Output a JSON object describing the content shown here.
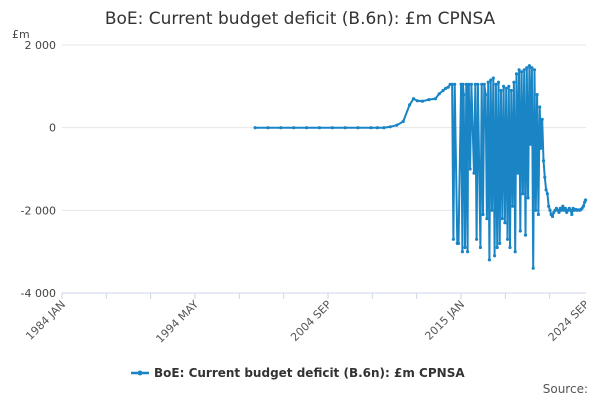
{
  "chart_data": {
    "type": "line",
    "title": "BoE: Current budget deficit (B.6n): £m CPNSA",
    "ylabel": "£m",
    "xlabel": "",
    "ylim": [
      -4000,
      2000
    ],
    "yticks": [
      2000,
      0,
      -2000,
      -4000
    ],
    "ytick_labels": [
      "2 000",
      "0",
      "-2 000",
      "-4 000"
    ],
    "xlim": [
      1984.0,
      2024.7
    ],
    "xticks": [
      1984.0,
      1994.33,
      2004.67,
      2015.0,
      2024.67
    ],
    "xtick_labels": [
      "1984 JAN",
      "1994 MAY",
      "2004 SEP",
      "2015 JAN",
      "2024 SEP"
    ],
    "grid": true,
    "legend": "bottom-center",
    "color": "#1a85c5",
    "series": [
      {
        "name": "BoE: Current budget deficit (B.6n): £m CPNSA",
        "x": [
          1999.0,
          2000.0,
          2001.0,
          2002.0,
          2003.0,
          2004.0,
          2005.0,
          2006.0,
          2007.0,
          2008.0,
          2008.5,
          2009.0,
          2009.5,
          2010.0,
          2010.5,
          2011.0,
          2011.3,
          2011.6,
          2012.0,
          2012.5,
          2013.0,
          2013.3,
          2013.6,
          2013.8,
          2014.0,
          2014.15,
          2014.3,
          2014.4,
          2014.5,
          2014.7,
          2014.8,
          2015.0,
          2015.1,
          2015.15,
          2015.2,
          2015.3,
          2015.4,
          2015.5,
          2015.55,
          2015.6,
          2015.7,
          2015.8,
          2016.0,
          2016.1,
          2016.2,
          2016.3,
          2016.5,
          2016.6,
          2016.7,
          2016.8,
          2016.9,
          2017.0,
          2017.1,
          2017.2,
          2017.3,
          2017.4,
          2017.5,
          2017.6,
          2017.7,
          2017.8,
          2017.9,
          2018.0,
          2018.1,
          2018.2,
          2018.3,
          2018.4,
          2018.5,
          2018.6,
          2018.7,
          2018.8,
          2018.9,
          2019.0,
          2019.1,
          2019.2,
          2019.3,
          2019.4,
          2019.5,
          2019.6,
          2019.7,
          2019.8,
          2019.9,
          2020.0,
          2020.1,
          2020.2,
          2020.3,
          2020.4,
          2020.5,
          2020.6,
          2020.7,
          2020.8,
          2020.9,
          2021.0,
          2021.1,
          2021.2,
          2021.3,
          2021.4,
          2021.5,
          2021.6,
          2021.7,
          2021.8,
          2021.9,
          2022.0,
          2022.1,
          2022.2,
          2022.3,
          2022.4,
          2022.5,
          2022.6,
          2022.7,
          2022.8,
          2022.9,
          2023.0,
          2023.1,
          2023.2,
          2023.3,
          2023.4,
          2023.5,
          2023.6,
          2023.7,
          2023.8,
          2023.9,
          2024.0,
          2024.1,
          2024.2,
          2024.3,
          2024.4,
          2024.5,
          2024.6,
          2024.67
        ],
        "y": [
          0,
          0,
          0,
          0,
          0,
          0,
          0,
          0,
          0,
          0,
          0,
          0,
          20,
          60,
          150,
          550,
          700,
          650,
          640,
          680,
          700,
          820,
          900,
          950,
          980,
          1050,
          1050,
          -2700,
          1050,
          -2800,
          -2800,
          1050,
          -3000,
          1050,
          800,
          -2900,
          1050,
          -3000,
          1000,
          1050,
          -1000,
          1050,
          -1100,
          1050,
          -2700,
          1050,
          -2900,
          1050,
          -2100,
          1050,
          800,
          -2200,
          1100,
          -3200,
          1150,
          -2000,
          1200,
          -3100,
          1050,
          -2900,
          1100,
          -2800,
          900,
          -2200,
          1000,
          -2300,
          950,
          -2700,
          1000,
          -2900,
          900,
          -1900,
          1100,
          -3000,
          1300,
          -1100,
          1400,
          -2500,
          1350,
          -1600,
          1400,
          -2600,
          1450,
          -1700,
          1500,
          -400,
          1450,
          -3400,
          1400,
          -2000,
          800,
          -2100,
          500,
          -500,
          200,
          -800,
          -1200,
          -1500,
          -1600,
          -1900,
          -2000,
          -2100,
          -2150,
          -2050,
          -2000,
          -1950,
          -2000,
          -2050,
          -1950,
          -2000,
          -1900,
          -2000,
          -1950,
          -2050,
          -2000,
          -1950,
          -2000,
          -2100,
          -1950,
          -2000,
          -1980,
          -2000,
          -1990,
          -2000,
          -1980,
          -1950,
          -1900,
          -1800,
          -1750
        ]
      }
    ]
  },
  "legend": {
    "label": "BoE: Current budget deficit (B.6n): £m CPNSA"
  },
  "source": {
    "label": "Source:"
  }
}
